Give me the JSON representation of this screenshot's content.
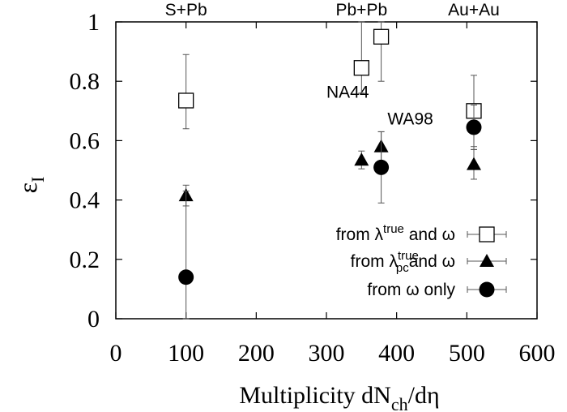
{
  "chart_data": {
    "type": "scatter",
    "title": "",
    "xlabel_main": "Multiplicity dN",
    "xlabel_sub": "ch",
    "xlabel_tail": "/dη",
    "ylabel_main": "ε",
    "ylabel_sub": "I",
    "xlim": [
      0,
      600
    ],
    "ylim": [
      0,
      1
    ],
    "x_ticks": [
      0,
      100,
      200,
      300,
      400,
      500,
      600
    ],
    "y_ticks": [
      0,
      0.2,
      0.4,
      0.6,
      0.8,
      1
    ],
    "y_tick_labels": [
      "0",
      "0.2",
      "0.4",
      "0.6",
      "0.8",
      "1"
    ],
    "grid": false,
    "legend_position": "bottom-right",
    "top_labels": [
      {
        "text": "S+Pb",
        "x": 100
      },
      {
        "text": "Pb+Pb",
        "x": 350
      },
      {
        "text": "Au+Au",
        "x": 510
      }
    ],
    "annotations": [
      {
        "text": "NA44",
        "x": 300,
        "y": 0.745
      },
      {
        "text": "WA98",
        "x": 387,
        "y": 0.655
      }
    ],
    "series": [
      {
        "marker": "open-square",
        "legend": {
          "pre": "from λ",
          "sup": "true",
          "sub": "",
          "post": " and ω"
        },
        "points": [
          {
            "x": 100,
            "y": 0.735,
            "ylo": 0.64,
            "yhi": 0.89
          },
          {
            "x": 350,
            "y": 0.845,
            "ylo": 0.76,
            "yhi": 1.0
          },
          {
            "x": 378,
            "y": 0.95,
            "ylo": 0.8,
            "yhi": 1.0
          },
          {
            "x": 510,
            "y": 0.7,
            "ylo": 0.58,
            "yhi": 0.82
          }
        ]
      },
      {
        "marker": "filled-triangle",
        "legend": {
          "pre": "from λ",
          "sup": "true",
          "sub": "pc",
          "post": "and ω"
        },
        "points": [
          {
            "x": 100,
            "y": 0.415,
            "ylo": 0.38,
            "yhi": 0.45
          },
          {
            "x": 350,
            "y": 0.535,
            "ylo": 0.505,
            "yhi": 0.565
          },
          {
            "x": 378,
            "y": 0.58,
            "ylo": 0.53,
            "yhi": 0.63
          },
          {
            "x": 510,
            "y": 0.52,
            "ylo": 0.47,
            "yhi": 0.57
          }
        ]
      },
      {
        "marker": "filled-circle",
        "legend": {
          "pre": "from ω only",
          "sup": "",
          "sub": "",
          "post": ""
        },
        "points": [
          {
            "x": 100,
            "y": 0.14,
            "ylo": 0.0,
            "yhi": 0.43
          },
          {
            "x": 378,
            "y": 0.51,
            "ylo": 0.39,
            "yhi": 0.63
          },
          {
            "x": 510,
            "y": 0.645,
            "ylo": 0.57,
            "yhi": 0.72
          }
        ]
      }
    ]
  }
}
